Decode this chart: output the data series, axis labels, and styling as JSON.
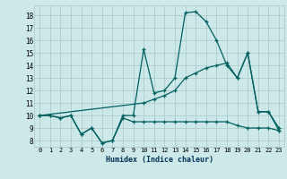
{
  "xlabel": "Humidex (Indice chaleur)",
  "bg_color": "#cde8e8",
  "grid_color": "#a8c8c8",
  "line_color": "#006060",
  "xlim": [
    -0.5,
    23.5
  ],
  "ylim": [
    7.5,
    18.8
  ],
  "xticks": [
    0,
    1,
    2,
    3,
    4,
    5,
    6,
    7,
    8,
    9,
    10,
    11,
    12,
    13,
    14,
    15,
    16,
    17,
    18,
    19,
    20,
    21,
    22,
    23
  ],
  "yticks": [
    8,
    9,
    10,
    11,
    12,
    13,
    14,
    15,
    16,
    17,
    18
  ],
  "line1_x": [
    0,
    1,
    2,
    3,
    4,
    5,
    6,
    7,
    8,
    9,
    10,
    11,
    12,
    13,
    14,
    15,
    16,
    17,
    18,
    19,
    20,
    21,
    22,
    23
  ],
  "line1_y": [
    10,
    10,
    9.8,
    10,
    8.5,
    9,
    7.8,
    8.0,
    10,
    10,
    15.3,
    11.8,
    12.0,
    13.0,
    18.2,
    18.3,
    17.5,
    16.0,
    14.0,
    13.0,
    15.0,
    10.3,
    10.3,
    8.8
  ],
  "line2_x": [
    0,
    10,
    11,
    12,
    13,
    14,
    15,
    16,
    17,
    18,
    19,
    20,
    21,
    22,
    23
  ],
  "line2_y": [
    10,
    11.0,
    11.3,
    11.6,
    12.0,
    13.0,
    13.4,
    13.8,
    14.0,
    14.2,
    13.0,
    15.0,
    10.3,
    10.3,
    9.0
  ],
  "line3_x": [
    0,
    1,
    2,
    3,
    4,
    5,
    6,
    7,
    8,
    9,
    10,
    11,
    12,
    13,
    14,
    15,
    16,
    17,
    18,
    19,
    20,
    21,
    22,
    23
  ],
  "line3_y": [
    10,
    10,
    9.8,
    10,
    8.5,
    9,
    7.8,
    8.0,
    9.8,
    9.5,
    9.5,
    9.5,
    9.5,
    9.5,
    9.5,
    9.5,
    9.5,
    9.5,
    9.5,
    9.2,
    9.0,
    9.0,
    9.0,
    8.8
  ]
}
